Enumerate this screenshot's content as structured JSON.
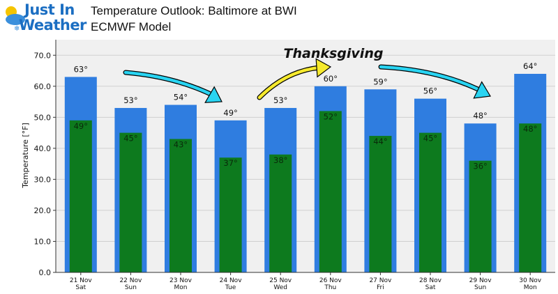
{
  "logo": {
    "line1": "Just In",
    "line2": "Weather",
    "icon": "sun-cloud-snow-icon"
  },
  "header": {
    "title": "Temperature Outlook: Baltimore at BWI",
    "subtitle": "ECMWF Model"
  },
  "annotation": {
    "thanksgiving": "Thanksgiving"
  },
  "colors": {
    "high_bar": "#2f7de0",
    "low_bar": "#0d7a1e",
    "plot_bg": "#f0f0f0",
    "cyan_arrow": "#29d4f2",
    "yellow_arrow": "#f6ea2e"
  },
  "chart_data": {
    "type": "bar",
    "categories": [
      "21 Nov\nSat",
      "22 Nov\nSun",
      "23 Nov\nMon",
      "24 Nov\nTue",
      "25 Nov\nWed",
      "26 Nov\nThu",
      "27 Nov\nFri",
      "28 Nov\nSat",
      "29 Nov\nSun",
      "30 Nov\nMon"
    ],
    "series": [
      {
        "values": [
          63,
          53,
          54,
          49,
          53,
          60,
          59,
          56,
          48,
          64
        ],
        "labels": [
          "63°",
          "53°",
          "54°",
          "49°",
          "53°",
          "60°",
          "59°",
          "56°",
          "48°",
          "64°"
        ]
      },
      {
        "values": [
          49,
          45,
          43,
          37,
          38,
          52,
          44,
          45,
          36,
          48
        ],
        "labels": [
          "49°",
          "45°",
          "43°",
          "37°",
          "38°",
          "52°",
          "44°",
          "45°",
          "36°",
          "48°"
        ]
      }
    ],
    "ylabel": "Temperature [°F]",
    "ylim": [
      0,
      75
    ],
    "yticks": [
      "0.0",
      "10.0",
      "20.0",
      "30.0",
      "40.0",
      "50.0",
      "60.0",
      "70.0"
    ],
    "grid": true
  }
}
